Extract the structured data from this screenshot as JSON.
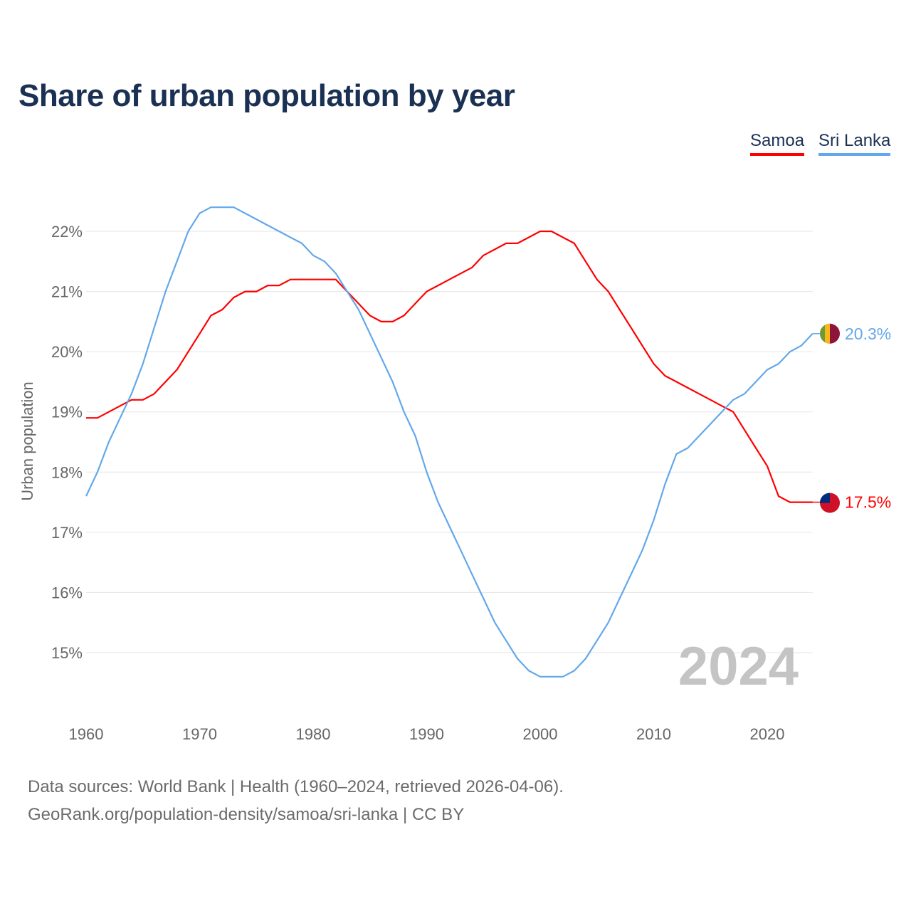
{
  "chart_data": {
    "type": "line",
    "title": "Share of urban population by year",
    "xlabel": "",
    "ylabel": "Urban population",
    "xlim": [
      1960,
      2024
    ],
    "ylim": [
      14,
      23
    ],
    "x_ticks": [
      "1960",
      "1970",
      "1980",
      "1990",
      "2000",
      "2010",
      "2020"
    ],
    "y_ticks": [
      "15%",
      "16%",
      "17%",
      "18%",
      "19%",
      "20%",
      "21%",
      "22%"
    ],
    "y_tick_values": [
      15,
      16,
      17,
      18,
      19,
      20,
      21,
      22
    ],
    "grid": true,
    "legend_placement": "top-right",
    "year_watermark": "2024",
    "x": [
      1960,
      1961,
      1962,
      1963,
      1964,
      1965,
      1966,
      1967,
      1968,
      1969,
      1970,
      1971,
      1972,
      1973,
      1974,
      1975,
      1976,
      1977,
      1978,
      1979,
      1980,
      1981,
      1982,
      1983,
      1984,
      1985,
      1986,
      1987,
      1988,
      1989,
      1990,
      1991,
      1992,
      1993,
      1994,
      1995,
      1996,
      1997,
      1998,
      1999,
      2000,
      2001,
      2002,
      2003,
      2004,
      2005,
      2006,
      2007,
      2008,
      2009,
      2010,
      2011,
      2012,
      2013,
      2014,
      2015,
      2016,
      2017,
      2018,
      2019,
      2020,
      2021,
      2022,
      2023,
      2024
    ],
    "series": [
      {
        "name": "Samoa",
        "color": "#ff0000",
        "end_label": "17.5%",
        "flag": "samoa-flag",
        "values": [
          18.9,
          18.9,
          19.0,
          19.1,
          19.2,
          19.2,
          19.3,
          19.5,
          19.7,
          20.0,
          20.3,
          20.6,
          20.7,
          20.9,
          21.0,
          21.0,
          21.1,
          21.1,
          21.2,
          21.2,
          21.2,
          21.2,
          21.2,
          21.0,
          20.8,
          20.6,
          20.5,
          20.5,
          20.6,
          20.8,
          21.0,
          21.1,
          21.2,
          21.3,
          21.4,
          21.6,
          21.7,
          21.8,
          21.8,
          21.9,
          22.0,
          22.0,
          21.9,
          21.8,
          21.5,
          21.2,
          21.0,
          20.7,
          20.4,
          20.1,
          19.8,
          19.6,
          19.5,
          19.4,
          19.3,
          19.2,
          19.1,
          19.0,
          18.7,
          18.4,
          18.1,
          17.6,
          17.5,
          17.5,
          17.5
        ]
      },
      {
        "name": "Sri Lanka",
        "color": "#63a8ea",
        "end_label": "20.3%",
        "flag": "sri-lanka-flag",
        "values": [
          17.6,
          18.0,
          18.5,
          18.9,
          19.3,
          19.8,
          20.4,
          21.0,
          21.5,
          22.0,
          22.3,
          22.4,
          22.4,
          22.4,
          22.3,
          22.2,
          22.1,
          22.0,
          21.9,
          21.8,
          21.6,
          21.5,
          21.3,
          21.0,
          20.7,
          20.3,
          19.9,
          19.5,
          19.0,
          18.6,
          18.0,
          17.5,
          17.1,
          16.7,
          16.3,
          15.9,
          15.5,
          15.2,
          14.9,
          14.7,
          14.6,
          14.6,
          14.6,
          14.7,
          14.9,
          15.2,
          15.5,
          15.9,
          16.3,
          16.7,
          17.2,
          17.8,
          18.3,
          18.4,
          18.6,
          18.8,
          19.0,
          19.2,
          19.3,
          19.5,
          19.7,
          19.8,
          20.0,
          20.1,
          20.3
        ]
      }
    ]
  },
  "footer": {
    "line1": "Data sources: World Bank | Health (1960–2024, retrieved 2026-04-06).",
    "line2": "GeoRank.org/population-density/samoa/sri-lanka | CC BY"
  }
}
